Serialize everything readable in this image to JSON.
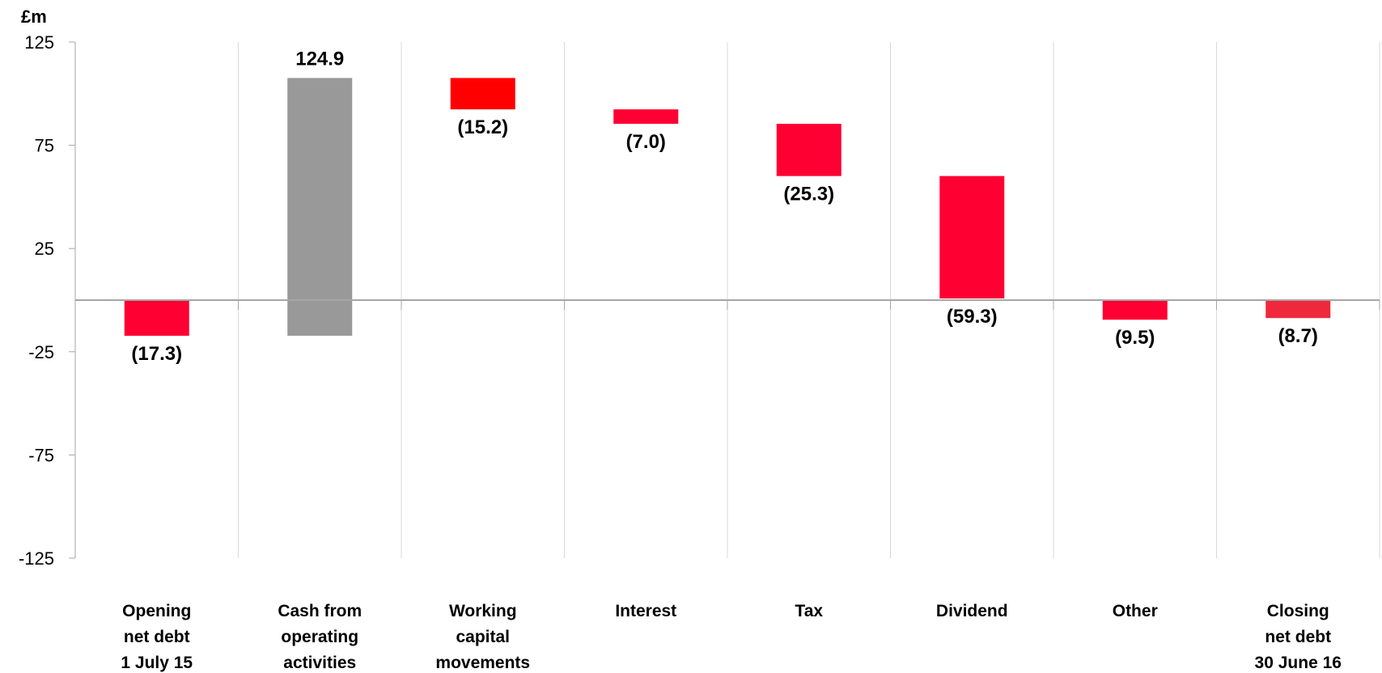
{
  "chart_data": {
    "type": "bar",
    "subtype": "waterfall",
    "y_unit": "£m",
    "ylim": [
      -125,
      125
    ],
    "yticks": [
      125,
      75,
      25,
      -25,
      -75,
      -125
    ],
    "grid": "vertical separators",
    "legend": "none",
    "colors": {
      "negative": "#ff0033",
      "positive": "#999999",
      "axis": "#a6a6a6"
    },
    "categories": [
      {
        "lines": [
          "Opening",
          "net debt",
          "1 July 15"
        ]
      },
      {
        "lines": [
          "Cash from",
          "operating",
          "activities"
        ]
      },
      {
        "lines": [
          "Working",
          "capital",
          "movements"
        ]
      },
      {
        "lines": [
          "Interest"
        ]
      },
      {
        "lines": [
          "Tax"
        ]
      },
      {
        "lines": [
          "Dividend"
        ]
      },
      {
        "lines": [
          "Other"
        ]
      },
      {
        "lines": [
          "Closing",
          "net debt",
          "30 June 16"
        ]
      }
    ],
    "bars": [
      {
        "start": 0,
        "end": -17.3,
        "label": "(17.3)",
        "color": "#ff0033"
      },
      {
        "start": -17.3,
        "end": 107.6,
        "label": "124.9",
        "color": "#999999"
      },
      {
        "start": 107.6,
        "end": 92.4,
        "label": "(15.2)",
        "color": "#ff0000"
      },
      {
        "start": 92.4,
        "end": 85.4,
        "label": "(7.0)",
        "color": "#ff0033"
      },
      {
        "start": 85.4,
        "end": 60.1,
        "label": "(25.3)",
        "color": "#ff0033"
      },
      {
        "start": 60.1,
        "end": 0.8,
        "label": "(59.3)",
        "color": "#ff0033"
      },
      {
        "start": 0,
        "end": -9.5,
        "label": "(9.5)",
        "color": "#ff0033"
      },
      {
        "start": 0,
        "end": -8.7,
        "label": "(8.7)",
        "color": "#f0283c"
      }
    ]
  }
}
